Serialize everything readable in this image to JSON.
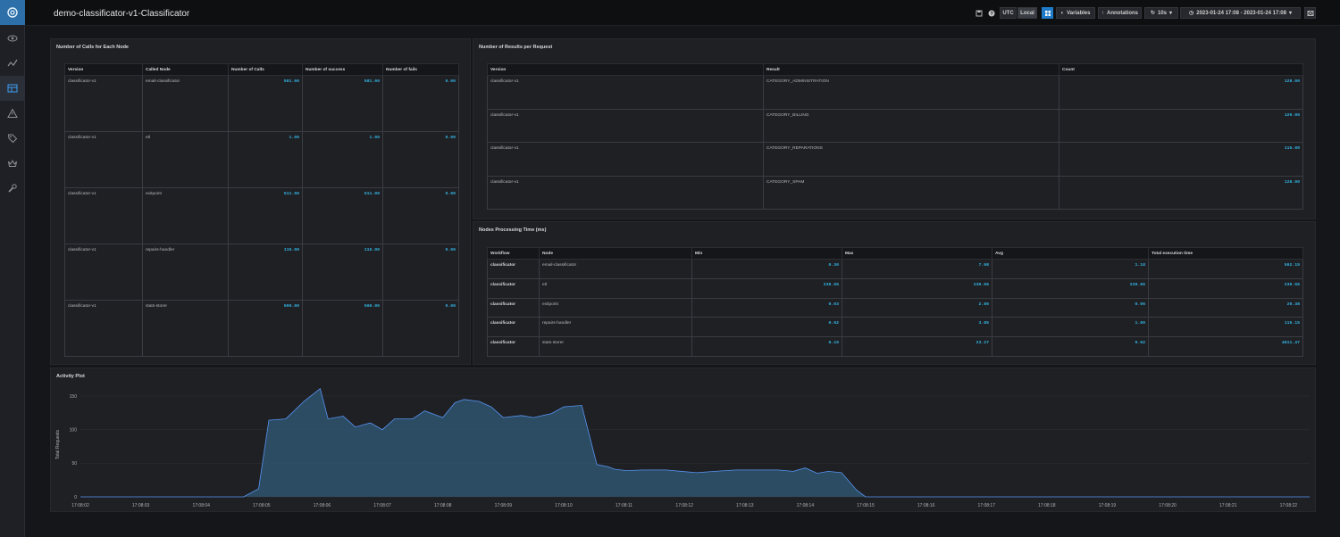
{
  "sidebar": {
    "items": [
      {
        "icon": "eye-icon"
      },
      {
        "icon": "explore-icon"
      },
      {
        "icon": "dashboards-icon",
        "active": true
      },
      {
        "icon": "alert-icon"
      },
      {
        "icon": "tag-icon"
      },
      {
        "icon": "crown-icon"
      },
      {
        "icon": "wrench-icon"
      }
    ]
  },
  "header": {
    "title": "demo-classificator-v1-Classificator",
    "utc_label": "UTC",
    "local_label": "Local",
    "variables_label": "Variables",
    "annotations_label": "Annotations",
    "refresh_label": "10s",
    "time_range": "2023-01-24 17:08 - 2023-01-24 17:08"
  },
  "calls_panel": {
    "title": "Number of Calls for Each Node",
    "columns": [
      "Version",
      "Called Node",
      "Number of Calls",
      "Number of success",
      "Number of fails"
    ],
    "rows": [
      [
        "classificator-v1",
        "email-classificator",
        "581.00",
        "581.00",
        "0.00"
      ],
      [
        "classificator-v1",
        "etl",
        "1.00",
        "1.00",
        "0.00"
      ],
      [
        "classificator-v1",
        "exitpoint",
        "511.00",
        "511.00",
        "0.00"
      ],
      [
        "classificator-v1",
        "repairs-handler",
        "115.00",
        "115.00",
        "0.00"
      ],
      [
        "classificator-v1",
        "stats-storer",
        "500.00",
        "500.00",
        "0.00"
      ]
    ]
  },
  "results_panel": {
    "title": "Number of Results per Request",
    "columns": [
      "Version",
      "Result",
      "Count"
    ],
    "rows": [
      [
        "classificator-v1",
        "CATEGORY_ADMINISTRATION",
        "128.00"
      ],
      [
        "classificator-v1",
        "CATEGORY_BILLING",
        "129.00"
      ],
      [
        "classificator-v1",
        "CATEGORY_REPARATIONS",
        "115.00"
      ],
      [
        "classificator-v1",
        "CATEGORY_SPAM",
        "128.00"
      ]
    ]
  },
  "times_panel": {
    "title": "Nodes Processing Time (ms)",
    "columns": [
      "Workflow",
      "Node",
      "Min",
      "Max",
      "Avg",
      "Total execution time"
    ],
    "rows": [
      [
        "classificator",
        "email-classificator",
        "0.30",
        "7.98",
        "1.18",
        "592.15"
      ],
      [
        "classificator",
        "etl",
        "239.55",
        "239.55",
        "239.55",
        "239.55"
      ],
      [
        "classificator",
        "exitpoint",
        "0.03",
        "2.86",
        "0.06",
        "29.38"
      ],
      [
        "classificator",
        "repairs-handler",
        "0.62",
        "3.85",
        "1.00",
        "115.15"
      ],
      [
        "classificator",
        "stats-storer",
        "6.10",
        "23.27",
        "9.62",
        "4811.47"
      ]
    ]
  },
  "activity_panel": {
    "title": "Activity Plot"
  },
  "colors": {
    "accent": "#33b5e5",
    "area_fill": "#2f5570",
    "area_line": "#5794f2",
    "panel_bg": "#1f2024"
  },
  "chart_data": {
    "type": "area",
    "title": "Activity Plot",
    "ylabel": "Total Requests",
    "xlabel": "",
    "ylim": [
      0,
      150
    ],
    "yticks": [
      0,
      50,
      100,
      150
    ],
    "xticks": [
      "17:08:02",
      "17:08:03",
      "17:08:04",
      "17:08:05",
      "17:08:06",
      "17:08:07",
      "17:08:08",
      "17:08:09",
      "17:08:10",
      "17:08:11",
      "17:08:12",
      "17:08:13",
      "17:08:14",
      "17:08:15",
      "17:08:16",
      "17:08:17",
      "17:08:18",
      "17:08:19",
      "17:08:20",
      "17:08:21",
      "17:08:22"
    ],
    "x_range": [
      2,
      22.35
    ],
    "series": [
      {
        "x": [
          2,
          4.7,
          4.95,
          5.12,
          5.4,
          5.7,
          5.97,
          6.1,
          6.35,
          6.55,
          6.8,
          7.0,
          7.2,
          7.5,
          7.7,
          8.0,
          8.2,
          8.35,
          8.6,
          8.8,
          9.0,
          9.3,
          9.5,
          9.8,
          10.0,
          10.3,
          10.55,
          10.73,
          10.85,
          11.05,
          11.3,
          11.7,
          12.2,
          12.5,
          12.85,
          13.2,
          13.55,
          13.8,
          14.0,
          14.2,
          14.38,
          14.6,
          14.85,
          15.0,
          22.35
        ],
        "y": [
          0,
          0,
          12,
          114,
          116,
          142,
          161,
          116,
          120,
          104,
          110,
          100,
          116,
          116,
          128,
          118,
          140,
          145,
          142,
          134,
          118,
          121,
          118,
          124,
          134,
          136,
          48,
          45,
          41,
          39,
          40,
          40,
          36,
          38,
          40,
          40,
          40,
          38,
          43,
          35,
          38,
          36,
          10,
          0,
          0
        ]
      }
    ]
  }
}
